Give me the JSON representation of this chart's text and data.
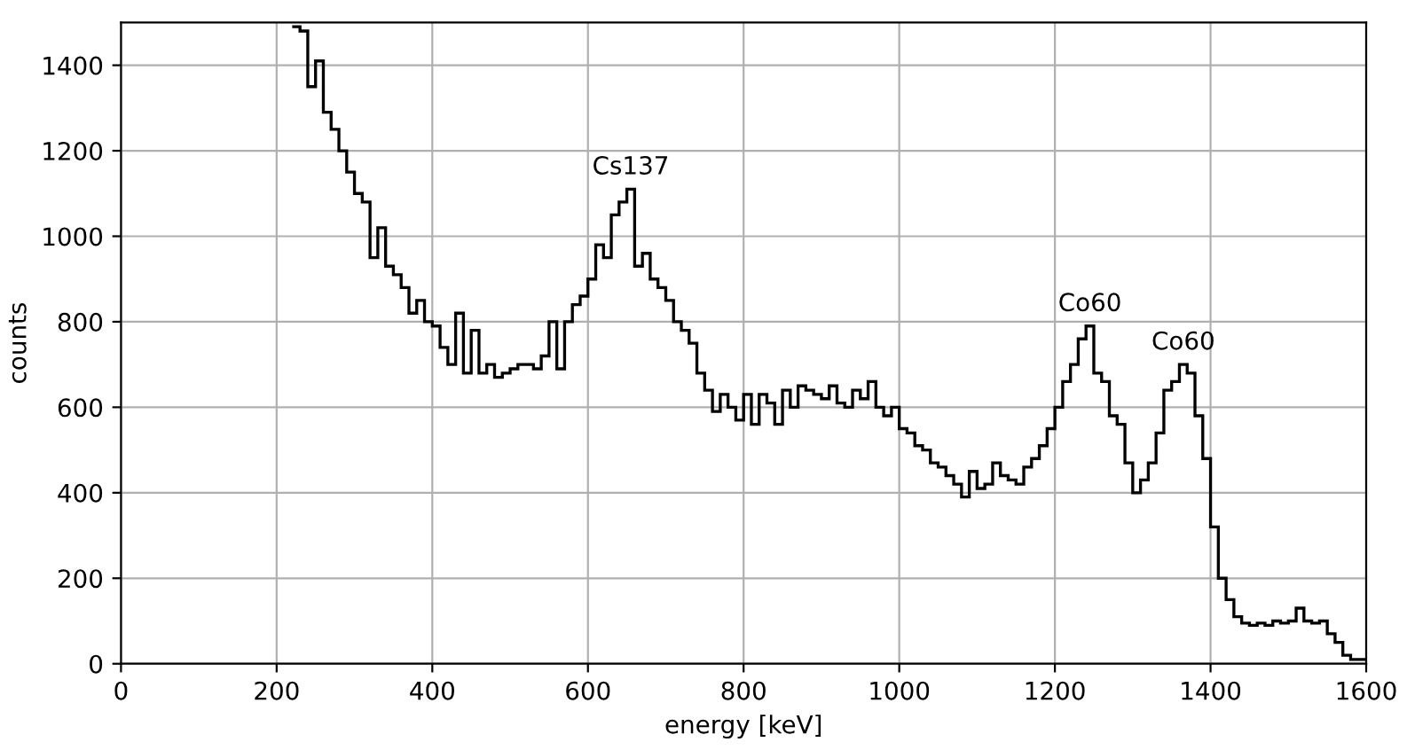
{
  "chart_data": {
    "type": "histogram",
    "xlabel": "energy [keV]",
    "ylabel": "counts",
    "bins": [
      220,
      230,
      240,
      250,
      260,
      270,
      280,
      290,
      300,
      310,
      320,
      330,
      340,
      350,
      360,
      370,
      380,
      390,
      400,
      410,
      420,
      430,
      440,
      450,
      460,
      470,
      480,
      490,
      500,
      510,
      520,
      530,
      540,
      550,
      560,
      570,
      580,
      590,
      600,
      610,
      620,
      630,
      640,
      650,
      660,
      670,
      680,
      690,
      700,
      710,
      720,
      730,
      740,
      750,
      760,
      770,
      780,
      790,
      800,
      810,
      820,
      830,
      840,
      850,
      860,
      870,
      880,
      890,
      900,
      910,
      920,
      930,
      940,
      950,
      960,
      970,
      980,
      990,
      1000,
      1010,
      1020,
      1030,
      1040,
      1050,
      1060,
      1070,
      1080,
      1090,
      1100,
      1110,
      1120,
      1130,
      1140,
      1150,
      1160,
      1170,
      1180,
      1190,
      1200,
      1210,
      1220,
      1230,
      1240,
      1250,
      1260,
      1270,
      1280,
      1290,
      1300,
      1310,
      1320,
      1330,
      1340,
      1350,
      1360,
      1370,
      1380,
      1390,
      1400,
      1410,
      1420,
      1430,
      1440,
      1450,
      1460,
      1470,
      1480,
      1490,
      1500,
      1510,
      1520,
      1530,
      1540,
      1550,
      1560,
      1570,
      1580,
      1590,
      1600
    ],
    "values": [
      1490,
      1480,
      1350,
      1410,
      1290,
      1250,
      1200,
      1150,
      1100,
      1080,
      950,
      1020,
      930,
      910,
      880,
      820,
      850,
      800,
      790,
      740,
      700,
      820,
      680,
      780,
      680,
      700,
      670,
      680,
      690,
      700,
      700,
      690,
      720,
      800,
      690,
      800,
      840,
      860,
      900,
      980,
      950,
      1050,
      1080,
      1110,
      930,
      960,
      900,
      880,
      850,
      800,
      780,
      750,
      680,
      640,
      590,
      630,
      600,
      570,
      630,
      560,
      630,
      610,
      560,
      640,
      600,
      650,
      640,
      630,
      620,
      650,
      610,
      600,
      640,
      620,
      660,
      600,
      580,
      600,
      550,
      540,
      510,
      500,
      470,
      460,
      440,
      420,
      390,
      450,
      410,
      420,
      470,
      440,
      430,
      420,
      460,
      480,
      510,
      550,
      600,
      660,
      700,
      760,
      790,
      680,
      660,
      580,
      560,
      470,
      400,
      430,
      470,
      540,
      640,
      660,
      700,
      680,
      580,
      480,
      320,
      200,
      150,
      110,
      95,
      90,
      95,
      90,
      100,
      95,
      100,
      130,
      100,
      95,
      100,
      70,
      50,
      20,
      10,
      10
    ],
    "color": "#000000",
    "annotations": [
      {
        "text": "Cs137",
        "x": 655,
        "y": 1110
      },
      {
        "text": "Co60",
        "x": 1245,
        "y": 790
      },
      {
        "text": "Co60",
        "x": 1365,
        "y": 700
      }
    ],
    "xlim": [
      0,
      1600
    ],
    "xticks": [
      0,
      200,
      400,
      600,
      800,
      1000,
      1200,
      1400,
      1600
    ],
    "ylim": [
      0,
      1500
    ],
    "yticks": [
      0,
      200,
      400,
      600,
      800,
      1000,
      1200,
      1400
    ],
    "grid": true
  }
}
